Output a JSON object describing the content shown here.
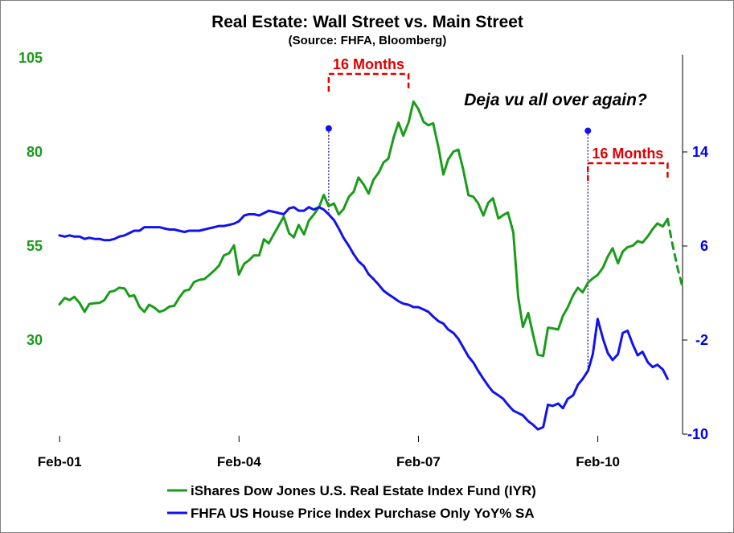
{
  "colors": {
    "green": "#1a9c1a",
    "blue": "#1212ee",
    "red": "#e00000",
    "navy": "#000080"
  },
  "chart_data": {
    "type": "line",
    "title": "Real Estate: Wall Street vs. Main Street",
    "subtitle": "(Source: FHFA, Bloomberg)",
    "x_ticks": [
      {
        "label": "Feb-01",
        "t": 2001.083
      },
      {
        "label": "Feb-04",
        "t": 2004.083
      },
      {
        "label": "Feb-07",
        "t": 2007.083
      },
      {
        "label": "Feb-10",
        "t": 2010.083
      }
    ],
    "x_range": [
      2001.0,
      2011.5
    ],
    "y_left": {
      "range": [
        5,
        105
      ],
      "ticks": [
        "30",
        "55",
        "80",
        "105"
      ]
    },
    "y_right": {
      "range": [
        -10,
        22
      ],
      "ticks": [
        "-10",
        "-2",
        "6",
        "14"
      ]
    },
    "grid": false,
    "legend_position": "bottom",
    "annotations": {
      "months_1": "16 Months",
      "months_2": "16 Months",
      "note": "Deja vu all over again?"
    },
    "series": [
      {
        "name": "iShares Dow Jones U.S. Real Estate Index Fund (IYR)",
        "axis": "left",
        "points": [
          [
            2001.08,
            39.5
          ],
          [
            2001.17,
            41.2
          ],
          [
            2001.25,
            40.6
          ],
          [
            2001.33,
            41.5
          ],
          [
            2001.42,
            39.8
          ],
          [
            2001.5,
            37.5
          ],
          [
            2001.58,
            39.6
          ],
          [
            2001.67,
            39.8
          ],
          [
            2001.75,
            39.9
          ],
          [
            2001.83,
            40.6
          ],
          [
            2001.92,
            42.8
          ],
          [
            2002.0,
            43.1
          ],
          [
            2002.08,
            43.9
          ],
          [
            2002.17,
            43.7
          ],
          [
            2002.25,
            41.6
          ],
          [
            2002.33,
            41.9
          ],
          [
            2002.42,
            38.8
          ],
          [
            2002.5,
            37.5
          ],
          [
            2002.58,
            39.4
          ],
          [
            2002.67,
            38.6
          ],
          [
            2002.75,
            37.5
          ],
          [
            2002.83,
            37.9
          ],
          [
            2002.92,
            38.9
          ],
          [
            2003.0,
            39.1
          ],
          [
            2003.08,
            41.2
          ],
          [
            2003.17,
            43.1
          ],
          [
            2003.25,
            43.4
          ],
          [
            2003.33,
            45.4
          ],
          [
            2003.42,
            46.0
          ],
          [
            2003.5,
            46.2
          ],
          [
            2003.58,
            47.2
          ],
          [
            2003.67,
            48.5
          ],
          [
            2003.75,
            49.8
          ],
          [
            2003.83,
            52.5
          ],
          [
            2003.92,
            53.1
          ],
          [
            2004.0,
            55.2
          ],
          [
            2004.08,
            47.4
          ],
          [
            2004.17,
            50.3
          ],
          [
            2004.25,
            51.2
          ],
          [
            2004.33,
            52.5
          ],
          [
            2004.42,
            52.5
          ],
          [
            2004.5,
            56.8
          ],
          [
            2004.58,
            55.7
          ],
          [
            2004.67,
            58.3
          ],
          [
            2004.75,
            60.5
          ],
          [
            2004.83,
            62.8
          ],
          [
            2004.92,
            58.4
          ],
          [
            2005.0,
            57.3
          ],
          [
            2005.08,
            60.6
          ],
          [
            2005.17,
            58.1
          ],
          [
            2005.25,
            61.7
          ],
          [
            2005.33,
            63.3
          ],
          [
            2005.42,
            65.3
          ],
          [
            2005.5,
            68.6
          ],
          [
            2005.58,
            65.6
          ],
          [
            2005.67,
            66.3
          ],
          [
            2005.75,
            63.4
          ],
          [
            2005.83,
            64.8
          ],
          [
            2005.92,
            68.1
          ],
          [
            2006.0,
            69.4
          ],
          [
            2006.08,
            73.2
          ],
          [
            2006.17,
            71.3
          ],
          [
            2006.25,
            68.9
          ],
          [
            2006.33,
            72.6
          ],
          [
            2006.42,
            74.5
          ],
          [
            2006.5,
            77.2
          ],
          [
            2006.58,
            78.2
          ],
          [
            2006.67,
            83.9
          ],
          [
            2006.75,
            87.8
          ],
          [
            2006.83,
            84.3
          ],
          [
            2006.92,
            87.9
          ],
          [
            2007.0,
            93.4
          ],
          [
            2007.08,
            91.5
          ],
          [
            2007.17,
            88.0
          ],
          [
            2007.25,
            87.1
          ],
          [
            2007.33,
            87.6
          ],
          [
            2007.42,
            81.1
          ],
          [
            2007.5,
            74.0
          ],
          [
            2007.58,
            78.0
          ],
          [
            2007.67,
            80.1
          ],
          [
            2007.75,
            80.6
          ],
          [
            2007.83,
            75.5
          ],
          [
            2007.92,
            68.5
          ],
          [
            2008.0,
            68.1
          ],
          [
            2008.08,
            66.4
          ],
          [
            2008.17,
            63.1
          ],
          [
            2008.25,
            66.5
          ],
          [
            2008.33,
            67.7
          ],
          [
            2008.42,
            62.3
          ],
          [
            2008.5,
            63.2
          ],
          [
            2008.58,
            63.9
          ],
          [
            2008.67,
            58.6
          ],
          [
            2008.75,
            41.5
          ],
          [
            2008.83,
            33.5
          ],
          [
            2008.92,
            37.2
          ],
          [
            2009.0,
            31.5
          ],
          [
            2009.08,
            26.1
          ],
          [
            2009.17,
            25.8
          ],
          [
            2009.25,
            33.3
          ],
          [
            2009.33,
            33.1
          ],
          [
            2009.42,
            32.8
          ],
          [
            2009.5,
            36.4
          ],
          [
            2009.58,
            38.7
          ],
          [
            2009.67,
            41.9
          ],
          [
            2009.75,
            43.9
          ],
          [
            2009.83,
            42.7
          ],
          [
            2009.92,
            45.3
          ],
          [
            2010.0,
            46.4
          ],
          [
            2010.08,
            47.3
          ],
          [
            2010.17,
            49.3
          ],
          [
            2010.25,
            52.2
          ],
          [
            2010.33,
            54.4
          ],
          [
            2010.42,
            50.4
          ],
          [
            2010.5,
            53.5
          ],
          [
            2010.58,
            54.7
          ],
          [
            2010.67,
            55.1
          ],
          [
            2010.75,
            56.3
          ],
          [
            2010.83,
            55.9
          ],
          [
            2010.92,
            57.6
          ],
          [
            2011.0,
            59.5
          ],
          [
            2011.08,
            61.0
          ],
          [
            2011.17,
            60.2
          ],
          [
            2011.25,
            62.2
          ]
        ]
      },
      {
        "name": "FHFA US House Price Index Purchase Only YoY% SA",
        "axis": "right",
        "points": [
          [
            2001.08,
            6.9
          ],
          [
            2001.17,
            6.8
          ],
          [
            2001.25,
            6.9
          ],
          [
            2001.33,
            6.8
          ],
          [
            2001.42,
            6.8
          ],
          [
            2001.5,
            6.6
          ],
          [
            2001.58,
            6.7
          ],
          [
            2001.67,
            6.6
          ],
          [
            2001.75,
            6.6
          ],
          [
            2001.83,
            6.5
          ],
          [
            2001.92,
            6.5
          ],
          [
            2002.0,
            6.6
          ],
          [
            2002.08,
            6.8
          ],
          [
            2002.17,
            6.9
          ],
          [
            2002.25,
            7.1
          ],
          [
            2002.33,
            7.3
          ],
          [
            2002.42,
            7.3
          ],
          [
            2002.5,
            7.6
          ],
          [
            2002.58,
            7.6
          ],
          [
            2002.67,
            7.6
          ],
          [
            2002.75,
            7.6
          ],
          [
            2002.83,
            7.5
          ],
          [
            2002.92,
            7.4
          ],
          [
            2003.0,
            7.4
          ],
          [
            2003.08,
            7.3
          ],
          [
            2003.17,
            7.2
          ],
          [
            2003.25,
            7.3
          ],
          [
            2003.33,
            7.3
          ],
          [
            2003.42,
            7.3
          ],
          [
            2003.5,
            7.4
          ],
          [
            2003.58,
            7.5
          ],
          [
            2003.67,
            7.6
          ],
          [
            2003.75,
            7.7
          ],
          [
            2003.83,
            7.7
          ],
          [
            2003.92,
            7.8
          ],
          [
            2004.0,
            7.9
          ],
          [
            2004.08,
            8.1
          ],
          [
            2004.17,
            8.6
          ],
          [
            2004.25,
            8.7
          ],
          [
            2004.33,
            8.7
          ],
          [
            2004.42,
            8.6
          ],
          [
            2004.5,
            8.8
          ],
          [
            2004.58,
            9.0
          ],
          [
            2004.67,
            8.9
          ],
          [
            2004.75,
            8.8
          ],
          [
            2004.83,
            8.7
          ],
          [
            2004.92,
            9.2
          ],
          [
            2005.0,
            9.3
          ],
          [
            2005.08,
            9.0
          ],
          [
            2005.17,
            9.0
          ],
          [
            2005.25,
            9.3
          ],
          [
            2005.33,
            9.1
          ],
          [
            2005.42,
            9.3
          ],
          [
            2005.5,
            9.1
          ],
          [
            2005.58,
            8.7
          ],
          [
            2005.67,
            8.2
          ],
          [
            2005.75,
            7.5
          ],
          [
            2005.83,
            6.7
          ],
          [
            2005.92,
            6.0
          ],
          [
            2006.0,
            5.3
          ],
          [
            2006.08,
            4.7
          ],
          [
            2006.17,
            4.3
          ],
          [
            2006.25,
            3.6
          ],
          [
            2006.33,
            3.2
          ],
          [
            2006.42,
            2.7
          ],
          [
            2006.5,
            2.2
          ],
          [
            2006.58,
            1.9
          ],
          [
            2006.67,
            1.6
          ],
          [
            2006.75,
            1.3
          ],
          [
            2006.83,
            1.1
          ],
          [
            2006.92,
            1.0
          ],
          [
            2007.0,
            0.8
          ],
          [
            2007.08,
            0.8
          ],
          [
            2007.17,
            0.6
          ],
          [
            2007.25,
            0.4
          ],
          [
            2007.33,
            0.0
          ],
          [
            2007.42,
            -0.4
          ],
          [
            2007.5,
            -0.6
          ],
          [
            2007.58,
            -1.1
          ],
          [
            2007.67,
            -1.4
          ],
          [
            2007.75,
            -1.9
          ],
          [
            2007.83,
            -2.6
          ],
          [
            2007.92,
            -3.4
          ],
          [
            2008.0,
            -3.9
          ],
          [
            2008.08,
            -4.6
          ],
          [
            2008.17,
            -5.3
          ],
          [
            2008.25,
            -5.9
          ],
          [
            2008.33,
            -6.4
          ],
          [
            2008.42,
            -6.7
          ],
          [
            2008.5,
            -7.0
          ],
          [
            2008.58,
            -7.5
          ],
          [
            2008.67,
            -8.0
          ],
          [
            2008.75,
            -8.2
          ],
          [
            2008.83,
            -8.4
          ],
          [
            2008.92,
            -8.9
          ],
          [
            2009.0,
            -9.2
          ],
          [
            2009.08,
            -9.6
          ],
          [
            2009.17,
            -9.4
          ],
          [
            2009.25,
            -7.5
          ],
          [
            2009.33,
            -7.6
          ],
          [
            2009.42,
            -7.4
          ],
          [
            2009.5,
            -7.8
          ],
          [
            2009.58,
            -7.0
          ],
          [
            2009.67,
            -6.7
          ],
          [
            2009.75,
            -5.8
          ],
          [
            2009.83,
            -5.3
          ],
          [
            2009.92,
            -4.6
          ],
          [
            2010.0,
            -3.2
          ],
          [
            2010.08,
            -0.2
          ],
          [
            2010.17,
            -1.9
          ],
          [
            2010.25,
            -3.1
          ],
          [
            2010.33,
            -3.7
          ],
          [
            2010.42,
            -3.2
          ],
          [
            2010.5,
            -1.4
          ],
          [
            2010.58,
            -1.2
          ],
          [
            2010.67,
            -2.4
          ],
          [
            2010.75,
            -3.3
          ],
          [
            2010.83,
            -3.0
          ],
          [
            2010.92,
            -3.9
          ],
          [
            2011.0,
            -4.3
          ],
          [
            2011.08,
            -4.1
          ],
          [
            2011.17,
            -4.5
          ],
          [
            2011.25,
            -5.3
          ]
        ]
      },
      {
        "name": "",
        "axis": "left",
        "style": "dashed",
        "points": [
          [
            2011.25,
            62.2
          ],
          [
            2011.33,
            55.5
          ],
          [
            2011.42,
            49.0
          ],
          [
            2011.5,
            44.0
          ]
        ]
      }
    ],
    "markers": [
      {
        "series": "right",
        "t": 2005.583,
        "value": 16.0
      },
      {
        "series": "right",
        "t": 2009.917,
        "value": 15.8
      }
    ],
    "brackets": [
      {
        "from": 2005.583,
        "to": 2006.917,
        "label_key": "months_1"
      },
      {
        "from": 2009.917,
        "to": 2011.25,
        "label_key": "months_2"
      }
    ]
  }
}
